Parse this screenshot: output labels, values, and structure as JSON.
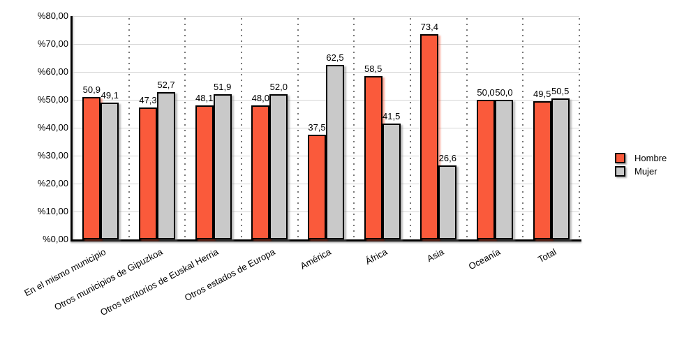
{
  "chart_data": {
    "type": "bar",
    "title": "",
    "xlabel": "",
    "ylabel": "",
    "categories": [
      "En el mismo municipio",
      "Otros municipios de Gipuzkoa",
      "Otros territorios de Euskal Herria",
      "Otros estados de Europa",
      "América",
      "África",
      "Asia",
      "Oceanía",
      "Total"
    ],
    "series": [
      {
        "name": "Hombre",
        "color": "#FA5A3B",
        "shadow_color": "rgba(249,91,60,0.5)",
        "values": [
          50.9,
          47.3,
          48.1,
          48.0,
          37.5,
          58.5,
          73.4,
          50.0,
          49.5
        ],
        "value_labels": [
          "50,9",
          "47,3",
          "48,1",
          "48,0",
          "37,5",
          "58,5",
          "73,4",
          "50,0",
          "49,5"
        ]
      },
      {
        "name": "Mujer",
        "color": "#C9C9C9",
        "shadow_color": "rgba(125,125,125,0.5)",
        "values": [
          49.1,
          52.7,
          51.9,
          52.0,
          62.5,
          41.5,
          26.6,
          50.0,
          50.5
        ],
        "value_labels": [
          "49,1",
          "52,7",
          "51,9",
          "52,0",
          "62,5",
          "41,5",
          "26,6",
          "50,0",
          "50,5"
        ]
      }
    ],
    "y_ticks": [
      "%80,00",
      "%70,00",
      "%60,00",
      "%50,00",
      "%40,00",
      "%30,00",
      "%20,00",
      "%10,00",
      "%0,00"
    ],
    "ylim": [
      0,
      80
    ],
    "y_tick_step": 10,
    "grid": true,
    "category_separators": "dotted",
    "legend_position": "right",
    "colors": {
      "axis": "#000000",
      "gridline": "#d5d5d5",
      "separator_dots": "#777777",
      "bar_border": "#000000",
      "text": "#000000",
      "background": "#ffffff"
    }
  }
}
